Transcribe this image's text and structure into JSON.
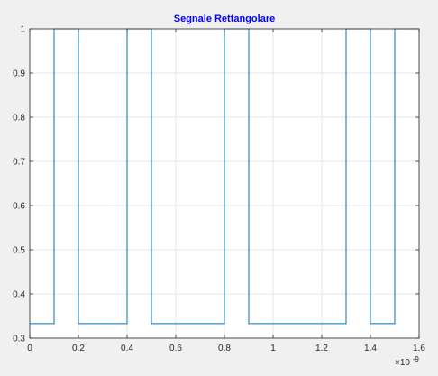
{
  "chart_data": {
    "type": "line",
    "title": "Segnale Rettangolare",
    "xlabel": "",
    "ylabel": "",
    "x_multiplier_label": "×10",
    "x_multiplier_exponent": "-9",
    "xlim": [
      0,
      1.6
    ],
    "ylim": [
      0.3,
      1.0
    ],
    "xticks": [
      0,
      0.2,
      0.4,
      0.6,
      0.8,
      1,
      1.2,
      1.4,
      1.6
    ],
    "xtick_labels": [
      "0",
      "0.2",
      "0.4",
      "0.6",
      "0.8",
      "1",
      "1.2",
      "1.4",
      "1.6"
    ],
    "yticks": [
      0.3,
      0.4,
      0.5,
      0.6,
      0.7,
      0.8,
      0.9,
      1
    ],
    "ytick_labels": [
      "0.3",
      "0.4",
      "0.5",
      "0.6",
      "0.7",
      "0.8",
      "0.9",
      "1"
    ],
    "grid": true,
    "series": [
      {
        "x": [
          0,
          0.1,
          0.1,
          0.2,
          0.2,
          0.4,
          0.4,
          0.5,
          0.5,
          0.8,
          0.8,
          0.9,
          0.9,
          1.3,
          1.3,
          1.4,
          1.4,
          1.5,
          1.5,
          1.6
        ],
        "y": [
          0.333,
          0.333,
          1,
          1,
          0.333,
          0.333,
          1,
          1,
          0.333,
          0.333,
          1,
          1,
          0.333,
          0.333,
          1,
          1,
          0.333,
          0.333,
          1,
          1
        ],
        "color": "#0072bd"
      }
    ],
    "colors": {
      "title": "#0000ff",
      "axes_bg": "#ffffff",
      "grid": "#dfdfdf",
      "axis": "#262626"
    }
  }
}
